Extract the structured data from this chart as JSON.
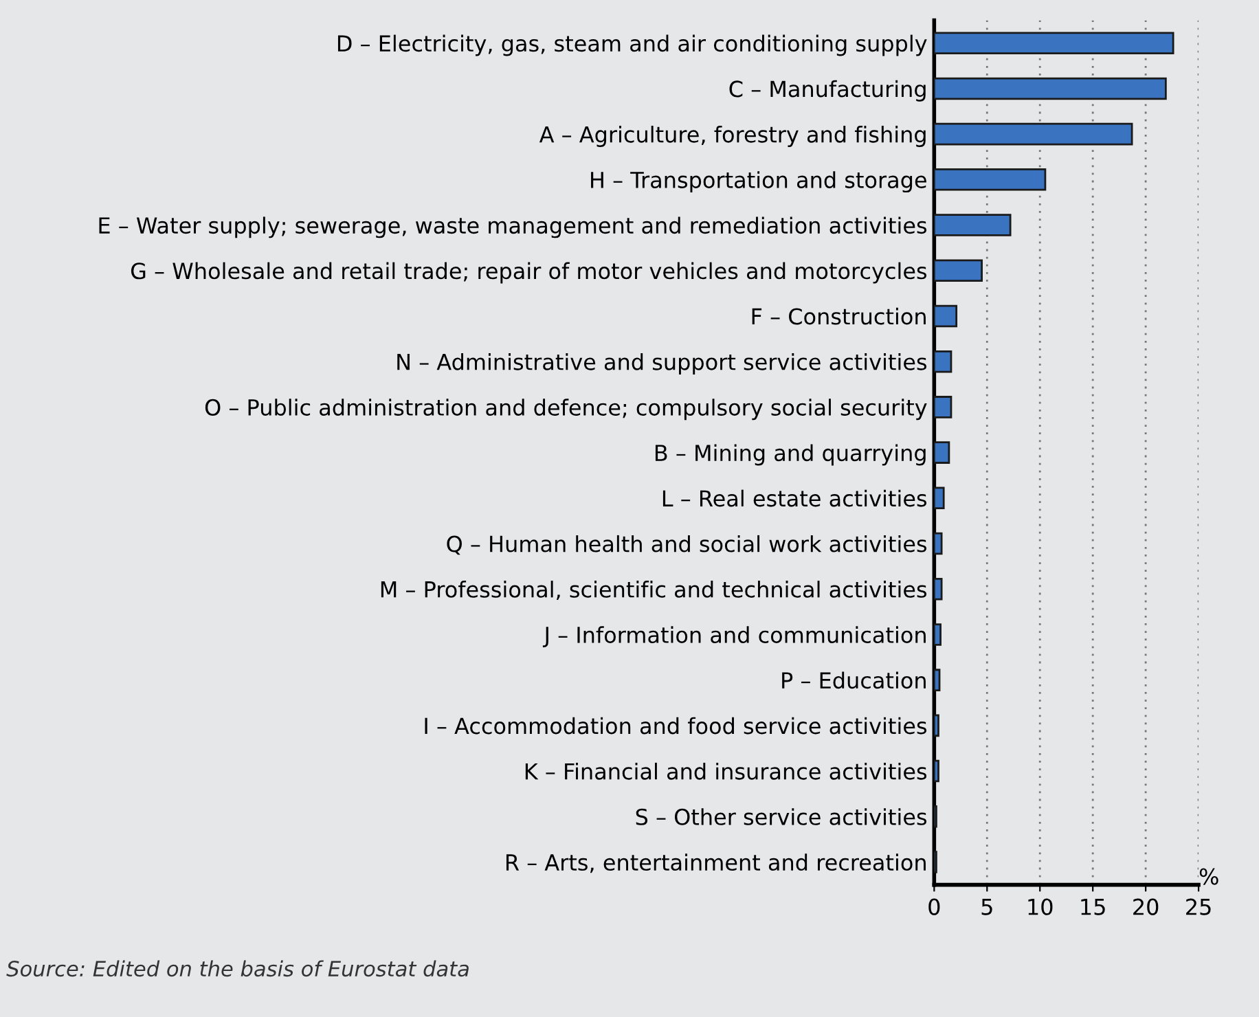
{
  "chart_data": {
    "type": "bar",
    "orientation": "horizontal",
    "categories": [
      "D – Electricity, gas, steam and air conditioning supply",
      "C – Manufacturing",
      "A – Agriculture, forestry and fishing",
      "H – Transportation and storage",
      "E – Water supply; sewerage, waste management and remediation activities",
      "G – Wholesale and retail trade; repair of motor vehicles and motorcycles",
      "F – Construction",
      "N – Administrative and support service activities",
      "O – Public administration and defence; compulsory social security",
      "B – Mining and quarrying",
      "L – Real estate activities",
      "Q – Human health and social work activities",
      "M – Professional, scientific and technical activities",
      "J – Information and communication",
      "P – Education",
      "I – Accommodation and food service activities",
      "K – Financial and insurance activities",
      "S – Other service activities",
      "R – Arts, entertainment and recreation"
    ],
    "values": [
      22.6,
      21.9,
      18.7,
      10.5,
      7.2,
      4.5,
      2.1,
      1.6,
      1.6,
      1.4,
      0.9,
      0.7,
      0.7,
      0.6,
      0.5,
      0.4,
      0.4,
      0.2,
      0.2
    ],
    "color": "#3a73c0",
    "xlim": [
      0,
      25
    ],
    "xticks": [
      0,
      5,
      10,
      15,
      20,
      25
    ],
    "xlabel": "%",
    "grid": "x",
    "annotations": [
      "Source: Edited on the basis of Eurostat data"
    ]
  }
}
